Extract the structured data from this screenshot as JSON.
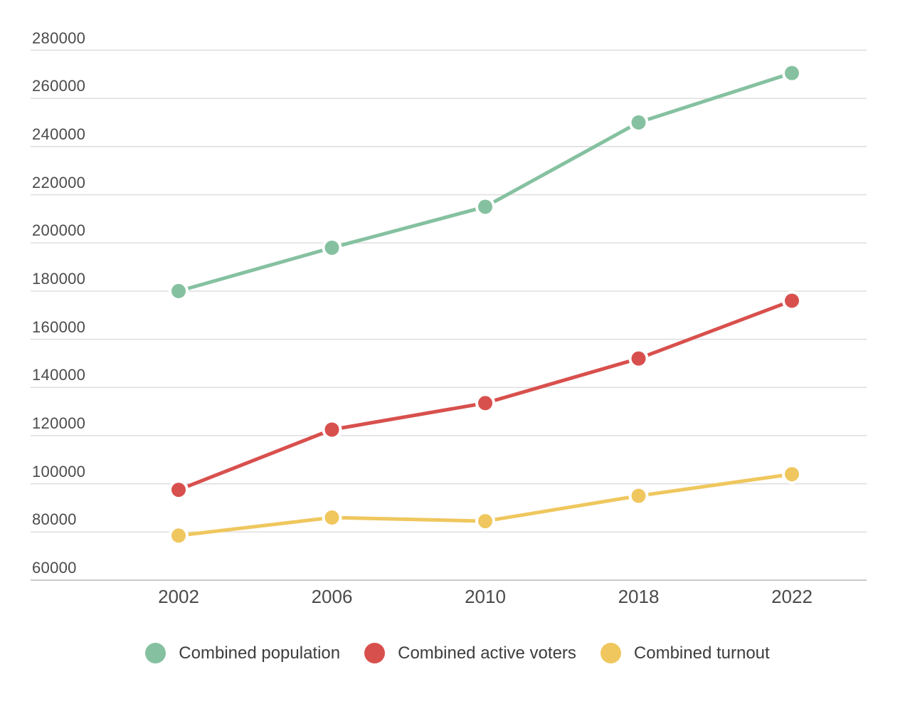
{
  "chart_data": {
    "type": "line",
    "title": "",
    "xlabel": "",
    "ylabel": "",
    "categories": [
      "2002",
      "2006",
      "2010",
      "2018",
      "2022"
    ],
    "series": [
      {
        "name": "Combined population",
        "color": "#85c1a0",
        "values": [
          180000,
          198000,
          215000,
          250000,
          270500
        ]
      },
      {
        "name": "Combined active voters",
        "color": "#d8504d",
        "values": [
          97500,
          122500,
          133500,
          152000,
          176000
        ]
      },
      {
        "name": "Combined turnout",
        "color": "#efc75e",
        "values": [
          78500,
          86000,
          84500,
          95000,
          104000
        ]
      }
    ],
    "ylim": [
      60000,
      280000
    ],
    "yticks": [
      60000,
      80000,
      100000,
      120000,
      140000,
      160000,
      180000,
      200000,
      220000,
      240000,
      260000,
      280000
    ],
    "grid": "horizontal",
    "legend_position": "bottom"
  },
  "colors": {
    "background": "#ffffff",
    "gridline": "#dcdcdc",
    "baseline": "#c9c9c9",
    "tick_text": "#4b4b4b",
    "legend_text": "#3d3d3d"
  }
}
